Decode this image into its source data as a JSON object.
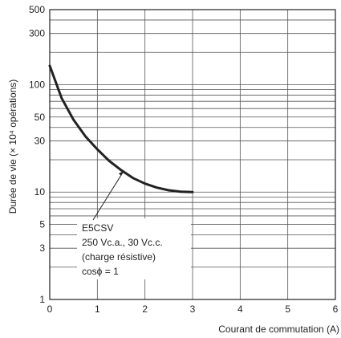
{
  "chart_data": {
    "type": "line",
    "title": "",
    "xlabel": "Courant de commutation (A)",
    "ylabel": "Durée de vie (× 10⁴ opérations)",
    "y_scale": "log",
    "xlim": [
      0,
      6
    ],
    "ylim": [
      1,
      500
    ],
    "grid": true,
    "x_ticks": [
      0,
      1,
      2,
      3,
      4,
      5,
      6
    ],
    "y_ticks": [
      1,
      3,
      5,
      10,
      30,
      50,
      100,
      300,
      500
    ],
    "series": [
      {
        "x": [
          0.0,
          0.25,
          0.5,
          0.75,
          1.0,
          1.25,
          1.5,
          1.75,
          2.0,
          2.25,
          2.5,
          2.75,
          3.0
        ],
        "values": [
          150,
          75,
          47,
          33,
          25,
          19.5,
          16,
          13.5,
          12,
          11,
          10.4,
          10.1,
          10
        ],
        "color": "#222222"
      }
    ],
    "annotation": {
      "lines": [
        "E5CSV",
        "250 Vc.a., 30 Vc.c.",
        "(charge résistive)",
        "cosϕ = 1"
      ],
      "points_to": {
        "x": 1.55,
        "y": 16
      }
    }
  }
}
